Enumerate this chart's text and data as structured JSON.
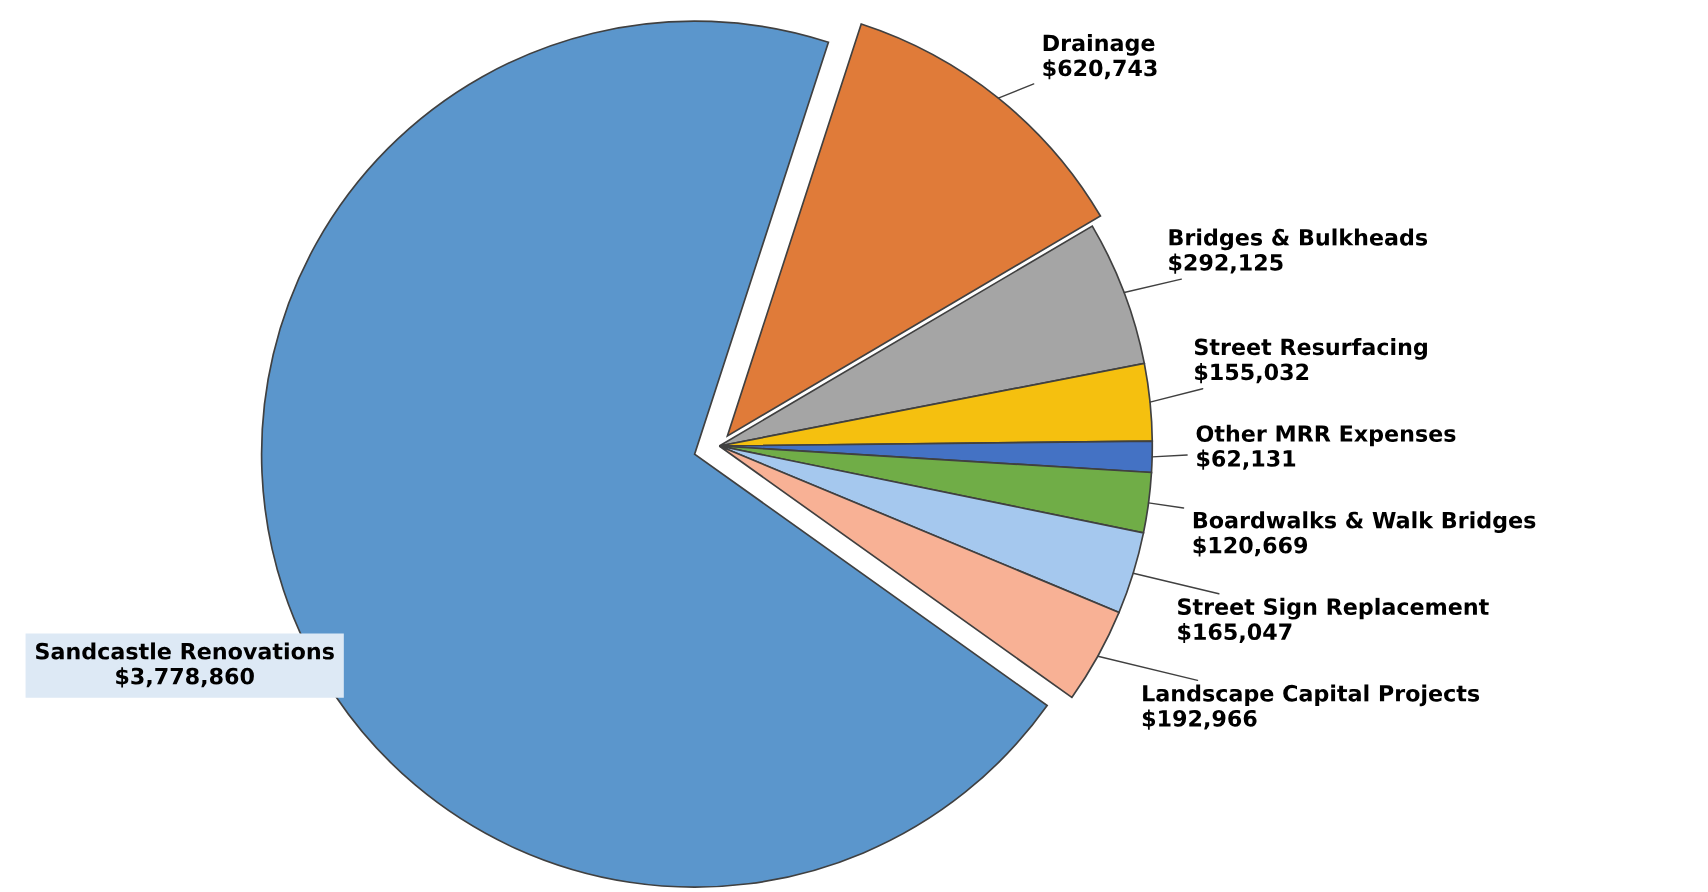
{
  "chart_data": {
    "type": "pie",
    "categories": [
      "Drainage",
      "Bridges & Bulkheads",
      "Street Resurfacing",
      "Other MRR Expenses",
      "Boardwalks & Walk Bridges",
      "Street Sign Replacement",
      "Landscape Capital Projects",
      "Sandcastle Renovations"
    ],
    "values": [
      620743,
      292125,
      155032,
      62131,
      120669,
      165047,
      192966,
      3778860
    ],
    "colors": [
      "#e07b39",
      "#a5a5a5",
      "#f5c00f",
      "#4472c4",
      "#70ad47",
      "#a5c8ee",
      "#f8b195",
      "#5b96cc"
    ],
    "value_labels": [
      "$620,743",
      "$292,125",
      "$155,032",
      "$62,131",
      "$120,669",
      "$165,047",
      "$192,966",
      "$3,778,860"
    ]
  }
}
